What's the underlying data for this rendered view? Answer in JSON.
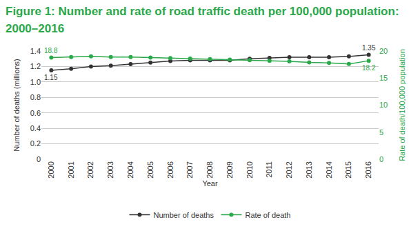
{
  "chart_data": {
    "type": "line",
    "title": "Figure 1: Number and rate of road traffic death per 100,000 population: 2000–2016",
    "x_label": "Year",
    "y_label": "Number of deaths (millions)",
    "y2_label": "Rate of death/100,000 population",
    "categories": [
      "2000",
      "2001",
      "2002",
      "2003",
      "2004",
      "2005",
      "2006",
      "2007",
      "2008",
      "2009",
      "2010",
      "2011",
      "2012",
      "2013",
      "2014",
      "2015",
      "2016"
    ],
    "series": [
      {
        "name": "Number of deaths",
        "color": "#333333",
        "marker": "circle",
        "values": [
          1.15,
          1.17,
          1.2,
          1.21,
          1.23,
          1.25,
          1.27,
          1.28,
          1.28,
          1.28,
          1.3,
          1.31,
          1.32,
          1.32,
          1.32,
          1.33,
          1.35
        ],
        "value_labels": [
          "1.15",
          null,
          null,
          null,
          null,
          null,
          null,
          null,
          null,
          null,
          null,
          null,
          null,
          null,
          null,
          null,
          "1.35"
        ]
      },
      {
        "name": "Rate of death",
        "color": "#2aa84a",
        "marker": "circle",
        "axis": "y2",
        "values": [
          18.8,
          18.9,
          19.0,
          18.9,
          18.9,
          18.8,
          18.7,
          18.6,
          18.5,
          18.4,
          18.3,
          18.2,
          18.1,
          17.9,
          17.8,
          17.6,
          18.2
        ],
        "value_labels": [
          "18.8",
          null,
          null,
          null,
          null,
          null,
          null,
          null,
          null,
          null,
          null,
          null,
          null,
          null,
          null,
          null,
          "18.2"
        ]
      }
    ],
    "ylim": [
      0,
      1.4
    ],
    "yticks": [
      0,
      0.2,
      0.4,
      0.6,
      0.8,
      {
        "value": 1,
        "label": "1.0"
      },
      1.2,
      1.4
    ],
    "y2lim": [
      0,
      20
    ],
    "y2ticks": [
      0,
      5,
      10,
      15,
      20
    ],
    "grid": true,
    "legend": "bottom"
  }
}
